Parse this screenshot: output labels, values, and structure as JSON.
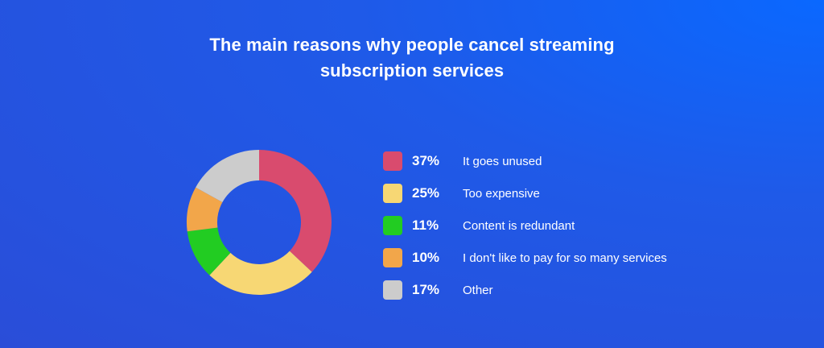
{
  "chart_data": {
    "type": "pie",
    "variant": "donut",
    "title_lines": [
      "The main reasons why people cancel streaming",
      "subscription services"
    ],
    "legend_placement": "right",
    "slices": [
      {
        "label": "It goes unused",
        "value": 37,
        "display": "37%",
        "color": "#d94b6e"
      },
      {
        "label": "Too expensive",
        "value": 25,
        "display": "25%",
        "color": "#f7d774"
      },
      {
        "label": "Content is redundant",
        "value": 11,
        "display": "11%",
        "color": "#22cc22"
      },
      {
        "label": "I don't like to pay for so many services",
        "value": 10,
        "display": "10%",
        "color": "#f2a64a"
      },
      {
        "label": "Other",
        "value": 17,
        "display": "17%",
        "color": "#cccccc"
      }
    ]
  }
}
